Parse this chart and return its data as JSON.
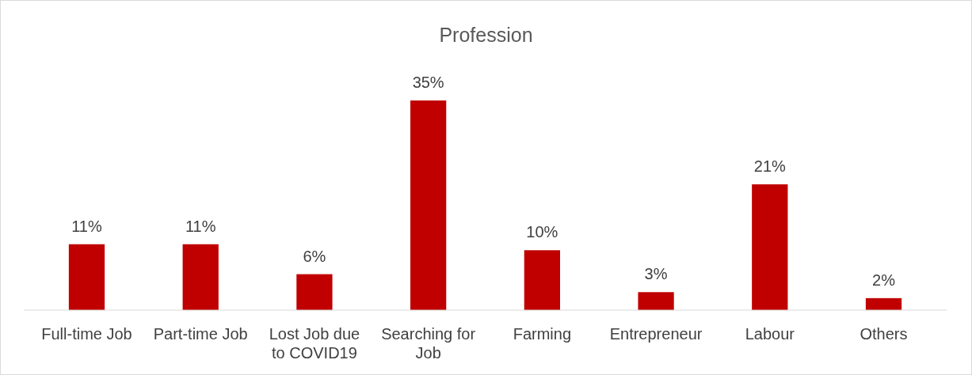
{
  "chart_data": {
    "type": "bar",
    "title": "Profession",
    "categories": [
      "Full-time Job",
      "Part-time Job",
      "Lost Job due to COVID19",
      "Searching for Job",
      "Farming",
      "Entrepreneur",
      "Labour",
      "Others"
    ],
    "values": [
      11,
      11,
      6,
      35,
      10,
      3,
      21,
      2
    ],
    "value_labels": [
      "11%",
      "11%",
      "6%",
      "35%",
      "10%",
      "3%",
      "21%",
      "2%"
    ],
    "color": "#c00000"
  }
}
